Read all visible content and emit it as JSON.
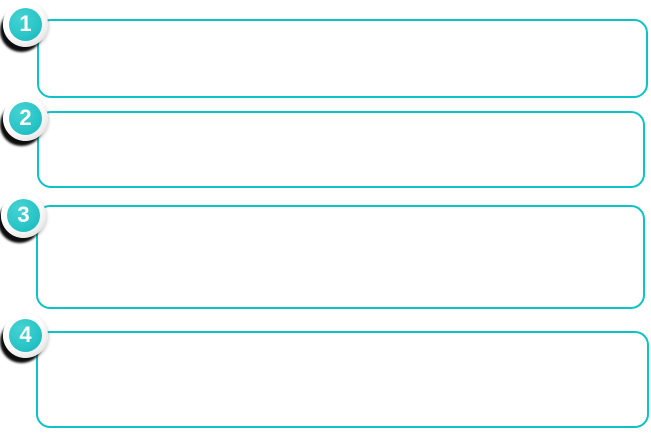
{
  "colors": {
    "accent": "#0cc3c8",
    "badge_fill": "#2bc6c8",
    "badge_fill_light": "#45d2d3",
    "badge_fill_dark": "#17b3b9",
    "ring_light": "#ffffff",
    "ring_dark": "#c9c9c9",
    "crescent_shadow": "#0d0d0d",
    "number_color": "#ffffff",
    "background": "#ffffff"
  },
  "steps": {
    "items": [
      {
        "number": "1"
      },
      {
        "number": "2"
      },
      {
        "number": "3"
      },
      {
        "number": "4"
      }
    ]
  }
}
